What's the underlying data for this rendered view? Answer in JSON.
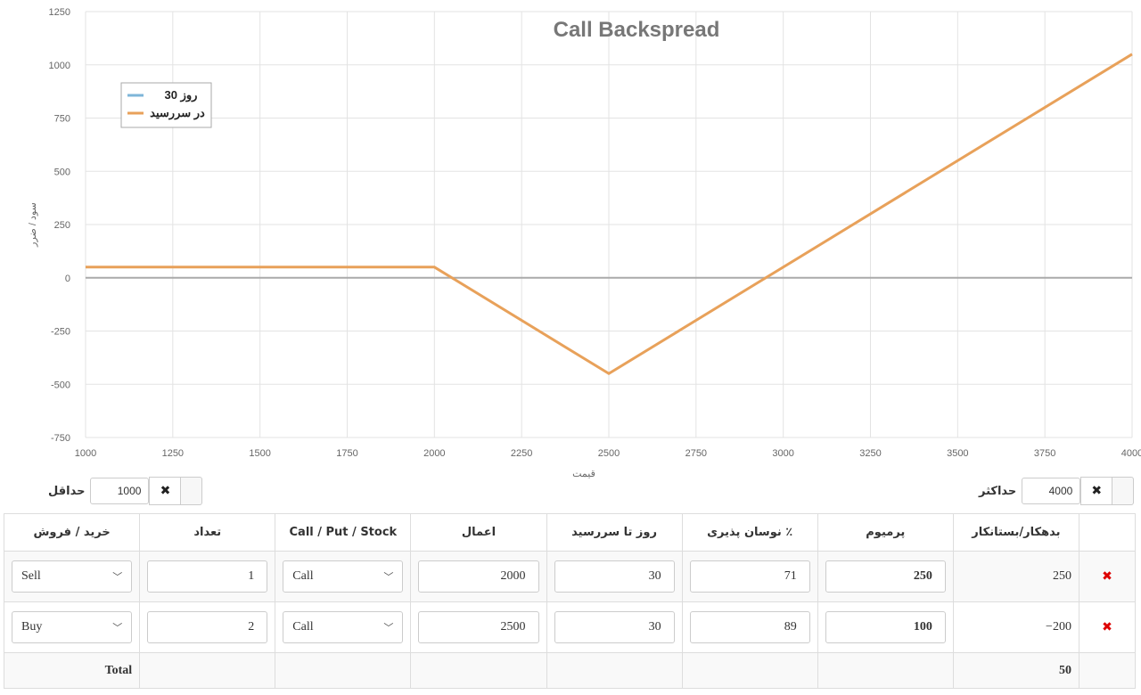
{
  "chart_data": {
    "type": "line",
    "title": "Call Backspread",
    "xlabel": "قیمت",
    "ylabel": "سود / ضرر",
    "xlim": [
      1000,
      4000
    ],
    "ylim": [
      -750,
      1250
    ],
    "x_ticks": [
      1000,
      1250,
      1500,
      1750,
      2000,
      2250,
      2500,
      2750,
      3000,
      3250,
      3500,
      3750,
      4000
    ],
    "y_ticks": [
      1250,
      1000,
      750,
      500,
      250,
      0,
      -250,
      -500,
      -750
    ],
    "grid": true,
    "legend_position": "top-left",
    "series": [
      {
        "name": "30 روز",
        "color": "#7eb6d8",
        "points": []
      },
      {
        "name": "در سررسید",
        "color": "#e8a15a",
        "points": [
          [
            1000,
            50
          ],
          [
            2000,
            50
          ],
          [
            2500,
            -450
          ],
          [
            4000,
            1050
          ]
        ]
      }
    ]
  },
  "controls": {
    "min_label": "حداقل",
    "min_value": "1000",
    "max_label": "حداکثر",
    "max_value": "4000",
    "clear_glyph": "✖"
  },
  "table": {
    "headers": {
      "debit_credit": "بدهکار/بستانکار",
      "premium": "پرمیوم",
      "volatility": "٪ نوسان پذیری",
      "days": "روز تا سررسید",
      "strike": "اعمال",
      "type": "Call / Put / Stock",
      "quantity": "تعداد",
      "side": "خرید / فروش"
    },
    "rows": [
      {
        "debit_credit": "250",
        "premium": "250",
        "volatility": "71",
        "days": "30",
        "strike": "2000",
        "type": "Call",
        "quantity": "1",
        "side": "Sell"
      },
      {
        "debit_credit": "−200",
        "premium": "100",
        "volatility": "89",
        "days": "30",
        "strike": "2500",
        "type": "Call",
        "quantity": "2",
        "side": "Buy"
      }
    ],
    "total_label": "Total",
    "total_value": "50",
    "delete_glyph": "✖"
  }
}
